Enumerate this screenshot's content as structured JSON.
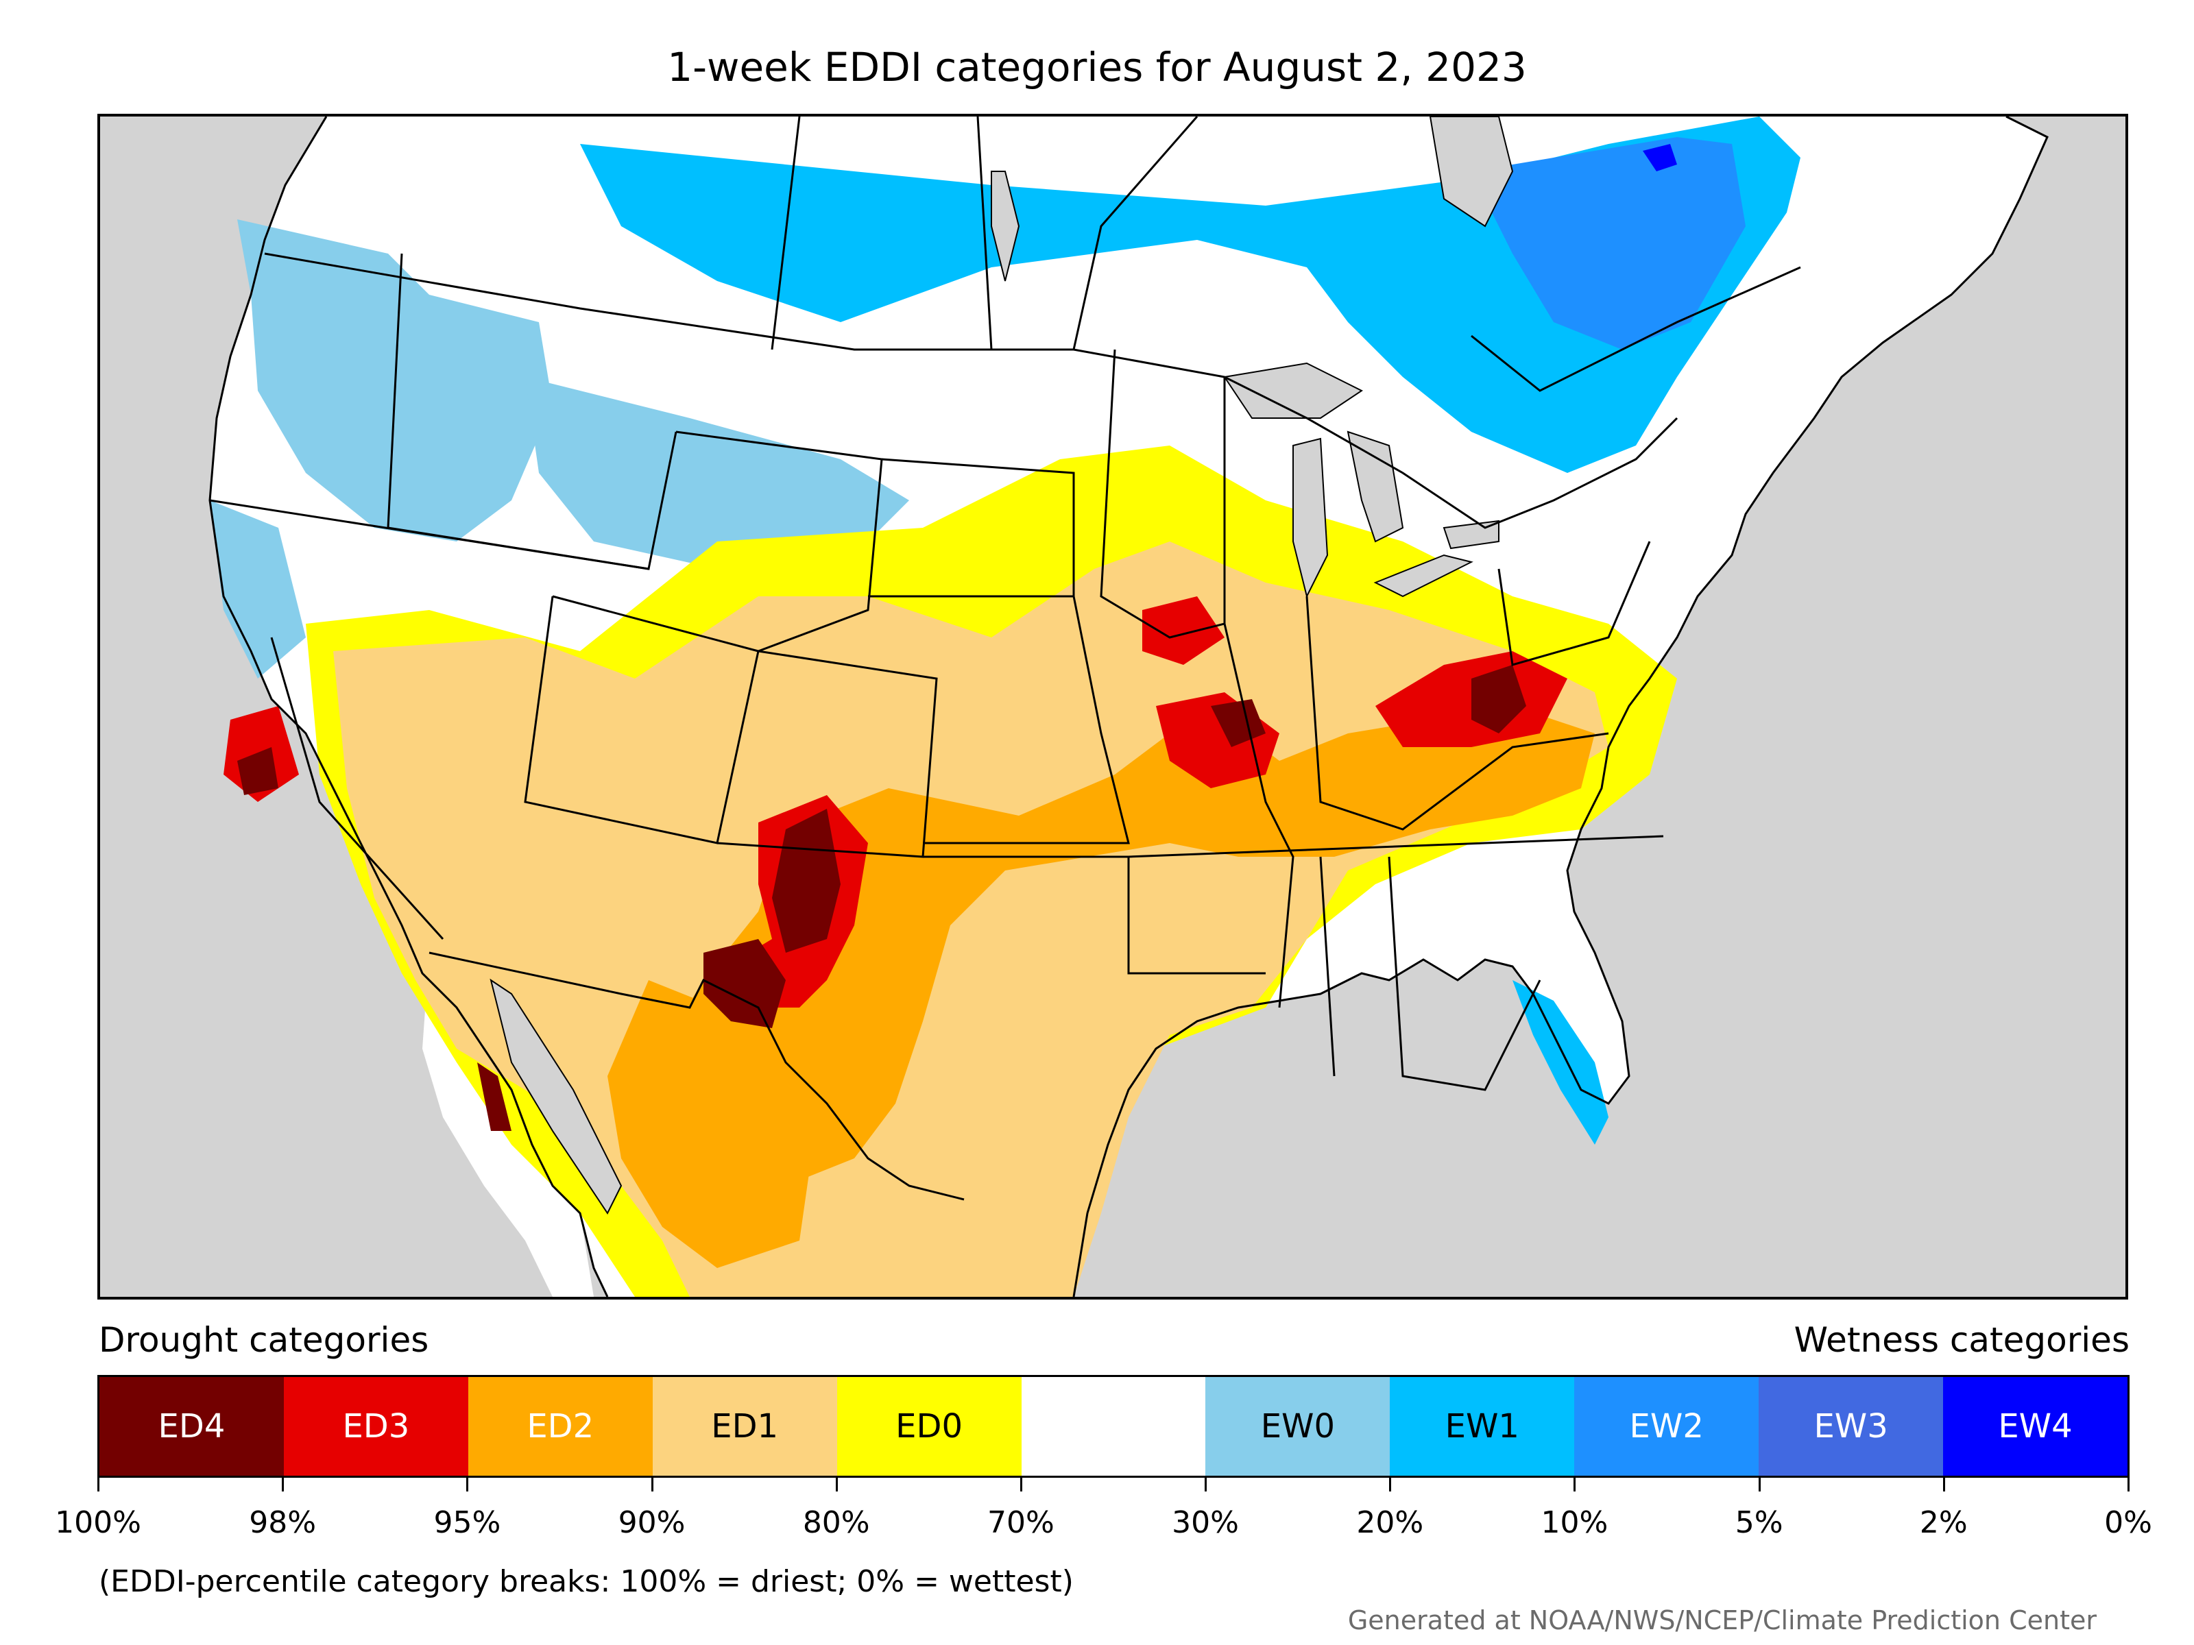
{
  "title": "1-week EDDI categories for August 2, 2023",
  "map": {
    "colors": {
      "background": "#d3d3d3",
      "land": "#ffffff",
      "ED4": "#730000",
      "ED3": "#e60000",
      "ED2": "#ffaa00",
      "ED1": "#fcd37f",
      "ED0": "#ffff00",
      "neutral": "#ffffff",
      "EW0": "#87ceeb",
      "EW1": "#00bfff",
      "EW2": "#1e90ff",
      "EW3": "#4169e1",
      "EW4": "#0000ff"
    }
  },
  "legend": {
    "drought_heading": "Drought categories",
    "wetness_heading": "Wetness categories",
    "categories": [
      {
        "label": "ED4",
        "color": "#730000",
        "text_color": "#ffffff"
      },
      {
        "label": "ED3",
        "color": "#e60000",
        "text_color": "#ffffff"
      },
      {
        "label": "ED2",
        "color": "#ffaa00",
        "text_color": "#ffffff"
      },
      {
        "label": "ED1",
        "color": "#fcd37f",
        "text_color": "#000000"
      },
      {
        "label": "ED0",
        "color": "#ffff00",
        "text_color": "#000000"
      },
      {
        "label": "",
        "color": "#ffffff",
        "text_color": "#000000"
      },
      {
        "label": "EW0",
        "color": "#87ceeb",
        "text_color": "#000000"
      },
      {
        "label": "EW1",
        "color": "#00bfff",
        "text_color": "#000000"
      },
      {
        "label": "EW2",
        "color": "#1e90ff",
        "text_color": "#ffffff"
      },
      {
        "label": "EW3",
        "color": "#4169e1",
        "text_color": "#ffffff"
      },
      {
        "label": "EW4",
        "color": "#0000ff",
        "text_color": "#ffffff"
      }
    ],
    "tick_labels": [
      "100%",
      "98%",
      "95%",
      "90%",
      "80%",
      "70%",
      "30%",
      "20%",
      "10%",
      "5%",
      "2%",
      "0%"
    ],
    "note": "(EDDI-percentile category breaks: 100% = driest; 0% = wettest)"
  },
  "credit": "Generated at NOAA/NWS/NCEP/Climate Prediction Center"
}
